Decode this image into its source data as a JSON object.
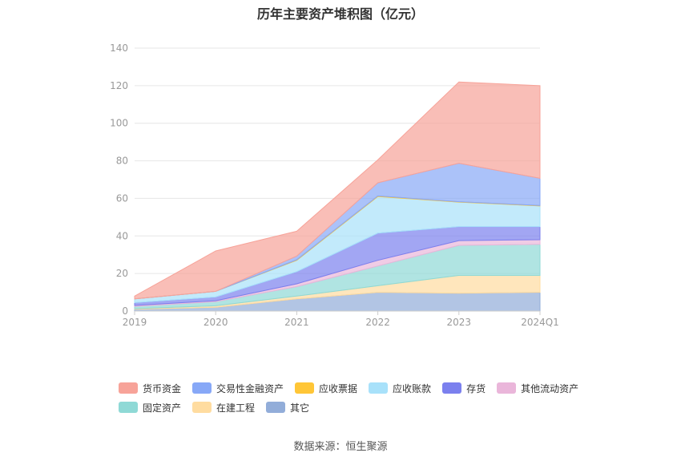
{
  "title": "历年主要资产堆积图（亿元）",
  "source": "数据来源：恒生聚源",
  "chart_data": {
    "type": "area",
    "stacked": true,
    "title": "历年主要资产堆积图（亿元）",
    "xlabel": "",
    "ylabel": "",
    "x": [
      "2019",
      "2020",
      "2021",
      "2022",
      "2023",
      "2024Q1"
    ],
    "ylim": [
      0,
      140
    ],
    "yticks": [
      0,
      20,
      40,
      60,
      80,
      100,
      120,
      140
    ],
    "grid": true,
    "legend_position": "bottom",
    "series": [
      {
        "name": "其它",
        "color": "#92add9",
        "values": [
          1.0,
          2.0,
          6.5,
          10.0,
          9.5,
          10.0
        ]
      },
      {
        "name": "在建工程",
        "color": "#ffdca0",
        "values": [
          0.3,
          0.8,
          1.5,
          3.5,
          9.5,
          9.0
        ]
      },
      {
        "name": "固定资产",
        "color": "#8fd9d6",
        "values": [
          1.2,
          2.2,
          5.0,
          10.5,
          16.0,
          16.5
        ]
      },
      {
        "name": "其他流动资产",
        "color": "#eab6da",
        "values": [
          0.5,
          0.5,
          1.5,
          3.0,
          2.5,
          2.5
        ]
      },
      {
        "name": "存货",
        "color": "#7b80ee",
        "values": [
          1.5,
          2.0,
          6.5,
          14.5,
          7.5,
          7.0
        ]
      },
      {
        "name": "应收账款",
        "color": "#a8e1fa",
        "values": [
          2.0,
          3.0,
          6.0,
          19.5,
          13.0,
          11.0
        ]
      },
      {
        "name": "应收票据",
        "color": "#ffc637",
        "values": [
          0.0,
          0.0,
          0.3,
          0.3,
          0.2,
          0.2
        ]
      },
      {
        "name": "交易性金融资产",
        "color": "#87a8f7",
        "values": [
          0.0,
          0.0,
          2.0,
          7.0,
          20.5,
          14.5
        ]
      },
      {
        "name": "货币资金",
        "color": "#f7a399",
        "values": [
          1.5,
          21.5,
          13.2,
          12.2,
          43.3,
          49.3
        ]
      }
    ]
  },
  "legend_order": [
    [
      "货币资金",
      "交易性金融资产",
      "应收票据",
      "应收账款",
      "存货",
      "其他流动资产"
    ],
    [
      "固定资产",
      "在建工程",
      "其它"
    ]
  ]
}
